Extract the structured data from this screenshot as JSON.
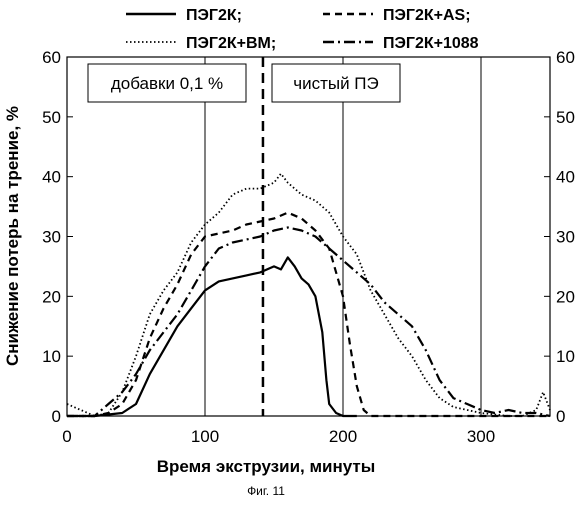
{
  "chart_data": {
    "type": "line",
    "xlabel": "Время экструзии, минуты",
    "ylabel": "Снижение потерь на трение, %",
    "caption": "Фиг. 11",
    "xlim": [
      0,
      350
    ],
    "ylim": [
      0,
      60
    ],
    "xticks": [
      0,
      100,
      200,
      300
    ],
    "yticks": [
      0,
      10,
      20,
      30,
      40,
      50,
      60
    ],
    "grid": "vertical lines at x = 100, 200, 300",
    "marker_x": 142,
    "region_labels": {
      "left": "добавки 0,1 %",
      "right": "чистый ПЭ"
    },
    "legend": [
      {
        "label": "ПЭГ2К;",
        "style": "solid"
      },
      {
        "label": "ПЭГ2К+AS;",
        "style": "dashed"
      },
      {
        "label": "ПЭГ2К+ВМ;",
        "style": "dotted"
      },
      {
        "label": "ПЭГ2К+1088",
        "style": "dashdot"
      }
    ],
    "series": [
      {
        "name": "ПЭГ2К;",
        "style": "solid",
        "x": [
          0,
          20,
          40,
          50,
          60,
          70,
          80,
          90,
          100,
          110,
          120,
          130,
          140,
          150,
          155,
          160,
          165,
          170,
          175,
          180,
          185,
          188,
          190,
          195,
          200,
          210
        ],
        "y": [
          0,
          0,
          0.5,
          2,
          7,
          11,
          15,
          18,
          21,
          22.5,
          23,
          23.5,
          24,
          25,
          24.5,
          26.5,
          25,
          23,
          22,
          20,
          14,
          6,
          2,
          0.5,
          0,
          0
        ]
      },
      {
        "name": "ПЭГ2К+AS;",
        "style": "dashed",
        "x": [
          0,
          20,
          30,
          40,
          50,
          60,
          70,
          80,
          90,
          100,
          110,
          120,
          130,
          140,
          150,
          160,
          170,
          180,
          190,
          200,
          205,
          210,
          215,
          220,
          230,
          250,
          270,
          350
        ],
        "y": [
          0,
          0,
          0.5,
          2,
          6,
          13,
          18,
          22,
          27,
          30,
          30.5,
          31,
          32,
          32.5,
          33,
          34,
          33,
          31,
          28,
          20,
          12,
          5,
          1,
          0,
          0,
          0,
          0,
          0
        ]
      },
      {
        "name": "ПЭГ2К+ВМ;",
        "style": "dotted",
        "x": [
          0,
          10,
          20,
          30,
          40,
          50,
          60,
          70,
          80,
          90,
          100,
          110,
          120,
          130,
          140,
          150,
          155,
          160,
          170,
          180,
          190,
          200,
          210,
          220,
          230,
          240,
          250,
          260,
          270,
          280,
          290,
          300,
          320,
          330,
          340,
          345,
          350
        ],
        "y": [
          2,
          1,
          0,
          0.5,
          4,
          10,
          17,
          21,
          24,
          29,
          32,
          34,
          37,
          38,
          38,
          39,
          40.5,
          39,
          37,
          36,
          34,
          30,
          27,
          21,
          17,
          13,
          10,
          6,
          3,
          1.5,
          1,
          0.5,
          0,
          0,
          1,
          4,
          1
        ]
      },
      {
        "name": "ПЭГ2К+1088",
        "style": "dashdot",
        "x": [
          0,
          20,
          30,
          40,
          50,
          60,
          70,
          80,
          90,
          100,
          110,
          120,
          130,
          140,
          150,
          160,
          170,
          180,
          190,
          200,
          210,
          220,
          230,
          240,
          250,
          260,
          270,
          280,
          290,
          300,
          310,
          320,
          330,
          340,
          350
        ],
        "y": [
          0,
          0,
          2,
          4,
          7,
          11,
          14,
          17,
          21,
          25,
          28,
          29,
          29.5,
          30,
          31,
          31.5,
          31,
          30,
          28,
          26,
          24,
          22,
          19,
          17,
          15,
          11,
          6,
          3,
          2,
          1,
          0.5,
          1,
          0.5,
          0.5,
          0
        ]
      }
    ]
  }
}
